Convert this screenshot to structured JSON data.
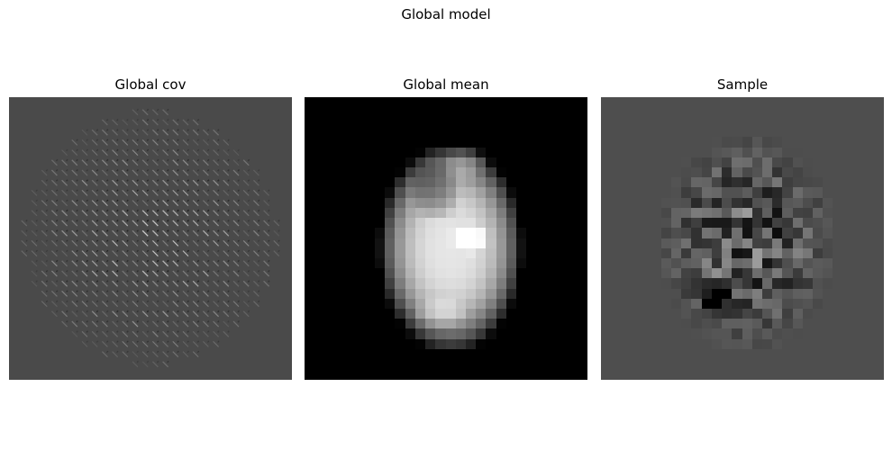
{
  "figure": {
    "title": "Global model"
  },
  "panels": [
    {
      "title": "Global cov"
    },
    {
      "title": "Global mean"
    },
    {
      "title": "Sample"
    }
  ]
}
